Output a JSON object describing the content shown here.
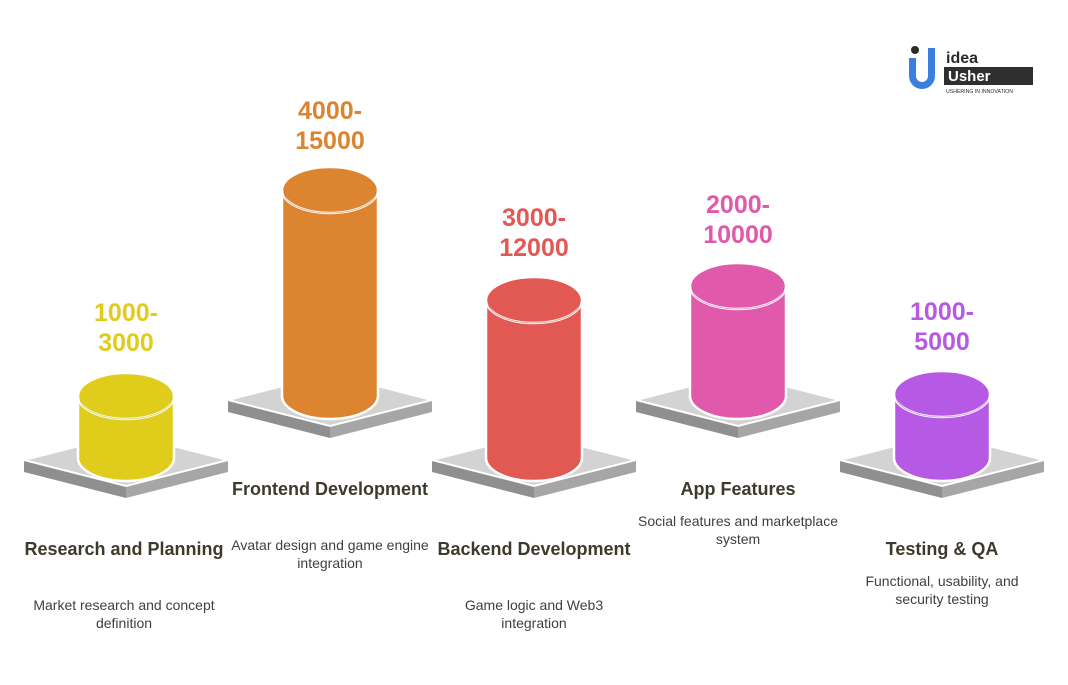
{
  "logo": {
    "line1": "idea",
    "line2": "Usher",
    "tagline": "USHERING IN INNOVATION"
  },
  "stages": [
    {
      "value_top": "1000-",
      "value_bottom": "3000",
      "title": "Research and Planning",
      "description": "Market research and concept definition",
      "color": "#e0cc1b",
      "level": 1
    },
    {
      "value_top": "4000-",
      "value_bottom": "15000",
      "title": "Frontend Development",
      "description": "Avatar design and game engine integration",
      "color": "#dd8430",
      "level": 5
    },
    {
      "value_top": "3000-",
      "value_bottom": "12000",
      "title": "Backend Development",
      "description": "Game logic and Web3 integration",
      "color": "#e25853",
      "level": 4
    },
    {
      "value_top": "2000-",
      "value_bottom": "10000",
      "title": "App Features",
      "description": "Social features and marketplace system",
      "color": "#e059aa",
      "level": 3
    },
    {
      "value_top": "1000-",
      "value_bottom": "5000",
      "title": "Testing & QA",
      "description": "Functional, usability, and security testing",
      "color": "#b659e4",
      "level": 2
    }
  ]
}
